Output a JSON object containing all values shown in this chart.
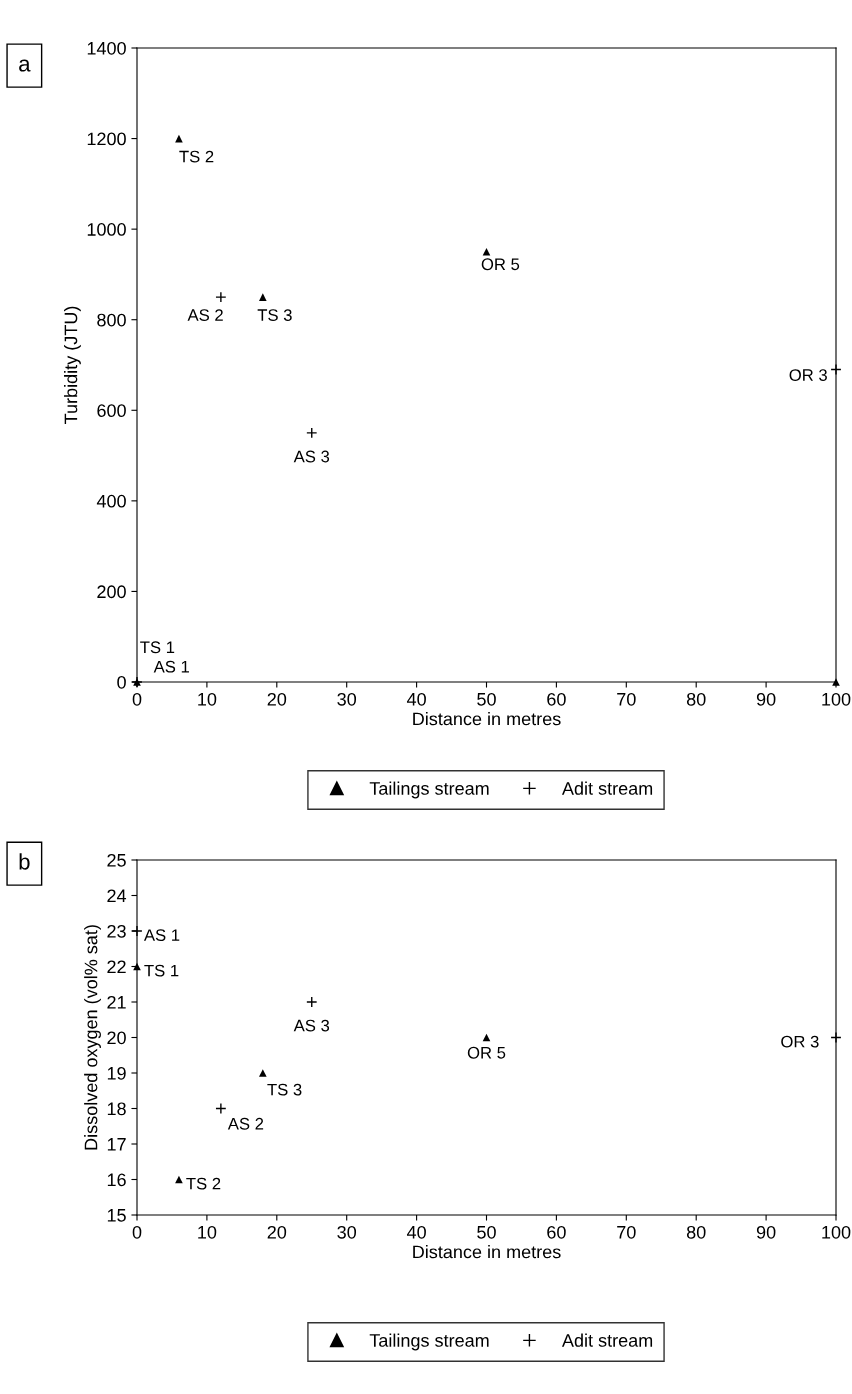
{
  "chart_data": [
    {
      "type": "scatter",
      "title": "a",
      "xlabel": "Distance in metres",
      "ylabel": "Turbidity (JTU)",
      "xlim": [
        0,
        100
      ],
      "ylim": [
        0,
        1400
      ],
      "xticks": [
        0,
        10,
        20,
        30,
        40,
        50,
        60,
        70,
        80,
        90,
        100
      ],
      "yticks": [
        0,
        200,
        400,
        600,
        800,
        1000,
        1200,
        1400
      ],
      "grid": false,
      "legend": "bottom",
      "series": [
        {
          "name": "Tailings stream",
          "color": "#000000",
          "marker": "triangle",
          "x": [
            0,
            6,
            18,
            50,
            100
          ],
          "values": [
            0,
            1200,
            850,
            950,
            0
          ]
        },
        {
          "name": "Adit stream",
          "color": "#000000",
          "marker": "cross",
          "x": [
            0,
            12,
            25,
            100
          ],
          "values": [
            0,
            850,
            550,
            690
          ]
        }
      ],
      "annotations": [
        {
          "text": "TS 1",
          "x": 0,
          "y": 0
        },
        {
          "text": "AS 1",
          "x": 0,
          "y": 0
        },
        {
          "text": "TS 2",
          "x": 6,
          "y": 1200
        },
        {
          "text": "AS 2",
          "x": 12,
          "y": 850
        },
        {
          "text": "TS 3",
          "x": 18,
          "y": 850
        },
        {
          "text": "AS 3",
          "x": 25,
          "y": 550
        },
        {
          "text": "OR 5",
          "x": 50,
          "y": 950
        },
        {
          "text": "OR 3",
          "x": 100,
          "y": 690
        }
      ]
    },
    {
      "type": "scatter",
      "title": "b",
      "xlabel": "Distance in metres",
      "ylabel": "Dissolved oxygen (vol% sat)",
      "xlim": [
        0,
        100
      ],
      "ylim": [
        15,
        25
      ],
      "xticks": [
        0,
        10,
        20,
        30,
        40,
        50,
        60,
        70,
        80,
        90,
        100
      ],
      "yticks": [
        15,
        16,
        17,
        18,
        19,
        20,
        21,
        22,
        23,
        24,
        25
      ],
      "grid": false,
      "legend": "bottom",
      "series": [
        {
          "name": "Tailings stream",
          "color": "#000000",
          "marker": "triangle",
          "x": [
            0,
            6,
            18,
            50
          ],
          "values": [
            22,
            16,
            19,
            20
          ]
        },
        {
          "name": "Adit stream",
          "color": "#000000",
          "marker": "cross",
          "x": [
            0,
            12,
            25,
            100
          ],
          "values": [
            23,
            18,
            21,
            20
          ]
        }
      ],
      "annotations": [
        {
          "text": "AS 1",
          "x": 0,
          "y": 23
        },
        {
          "text": "TS 1",
          "x": 0,
          "y": 22
        },
        {
          "text": "AS 3",
          "x": 25,
          "y": 21
        },
        {
          "text": "OR 5",
          "x": 50,
          "y": 20
        },
        {
          "text": "OR 3",
          "x": 100,
          "y": 20
        },
        {
          "text": "TS 3",
          "x": 18,
          "y": 19
        },
        {
          "text": "AS 2",
          "x": 12,
          "y": 18
        },
        {
          "text": "TS 2",
          "x": 6,
          "y": 16
        }
      ]
    }
  ]
}
